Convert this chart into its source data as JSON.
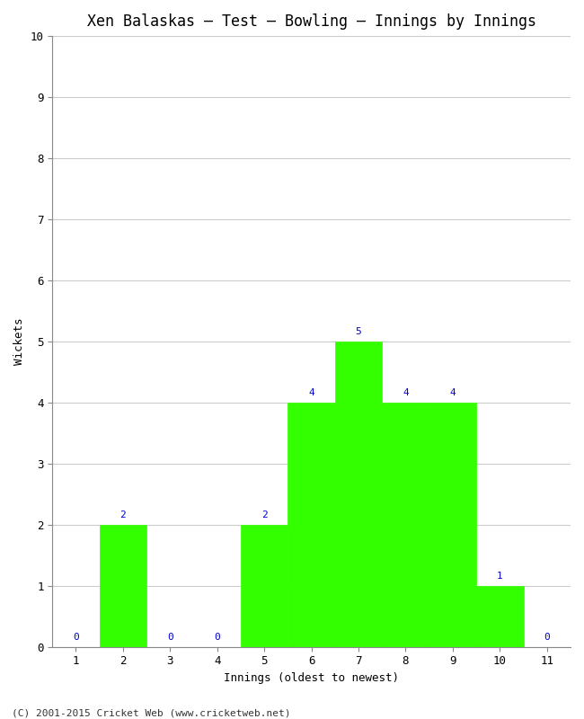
{
  "title": "Xen Balaskas – Test – Bowling – Innings by Innings",
  "xlabel": "Innings (oldest to newest)",
  "ylabel": "Wickets",
  "categories": [
    1,
    2,
    3,
    4,
    5,
    6,
    7,
    8,
    9,
    10,
    11
  ],
  "values": [
    0,
    2,
    0,
    0,
    2,
    4,
    5,
    4,
    4,
    1,
    0
  ],
  "bar_color": "#33ff00",
  "bar_edge_color": "#33ff00",
  "label_color": "#0000cc",
  "ylim": [
    0,
    10
  ],
  "yticks": [
    0,
    1,
    2,
    3,
    4,
    5,
    6,
    7,
    8,
    9,
    10
  ],
  "background_color": "#ffffff",
  "plot_bg_color": "#ffffff",
  "grid_color": "#cccccc",
  "title_fontsize": 12,
  "axis_label_fontsize": 9,
  "tick_fontsize": 9,
  "bar_label_fontsize": 8,
  "footer": "(C) 2001-2015 Cricket Web (www.cricketweb.net)"
}
